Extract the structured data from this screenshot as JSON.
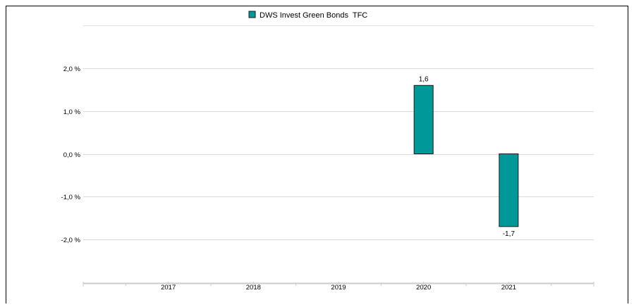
{
  "chart_data": {
    "type": "bar",
    "categories": [
      "2017",
      "2018",
      "2019",
      "2020",
      "2021"
    ],
    "series": [
      {
        "name": "DWS Invest Green Bonds  TFC",
        "values": [
          null,
          null,
          null,
          1.6,
          -1.7
        ],
        "color": "#009999",
        "data_labels": [
          "",
          "",
          "",
          "1,6",
          "-1,7"
        ]
      }
    ],
    "y_ticks": [
      2.0,
      1.0,
      0.0,
      -1.0,
      -2.0
    ],
    "y_tick_labels": [
      "2,0 %",
      "1,0 %",
      "0,0 %",
      "-1,0 %",
      "-2,0 %"
    ],
    "ylim": [
      -3.0,
      3.0
    ],
    "legend_position": "top-center",
    "grid": true,
    "title": "",
    "xlabel": "",
    "ylabel": ""
  },
  "colors": {
    "bar": "#009999",
    "bar_stroke": "#1a1a1a",
    "grid": "#d9d9d9",
    "axis": "#cccccc",
    "frame": "#000000",
    "text": "#000000"
  }
}
